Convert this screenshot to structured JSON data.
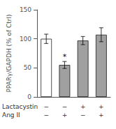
{
  "chart_data": {
    "type": "bar",
    "categories": [
      null,
      null,
      null,
      null
    ],
    "values": [
      100,
      55,
      97,
      107
    ],
    "errors": [
      8,
      6,
      7,
      12
    ],
    "colors": [
      "white",
      "#a0a0a0",
      "#a0a0a0",
      "#a0a0a0"
    ],
    "ylabel": "PPARγ/GAPDH (% of Ctrl)",
    "ylim": [
      0,
      150
    ],
    "yticks": [
      0,
      50,
      100,
      150
    ],
    "grid": false,
    "annotations": [
      {
        "text": "*",
        "index": 1
      }
    ],
    "row_labels": [
      {
        "label": "Lactacystin",
        "signs": [
          "−",
          "−",
          "+",
          "+"
        ]
      },
      {
        "label": "Ang II",
        "signs": [
          "−",
          "+",
          "−",
          "+"
        ]
      }
    ]
  }
}
